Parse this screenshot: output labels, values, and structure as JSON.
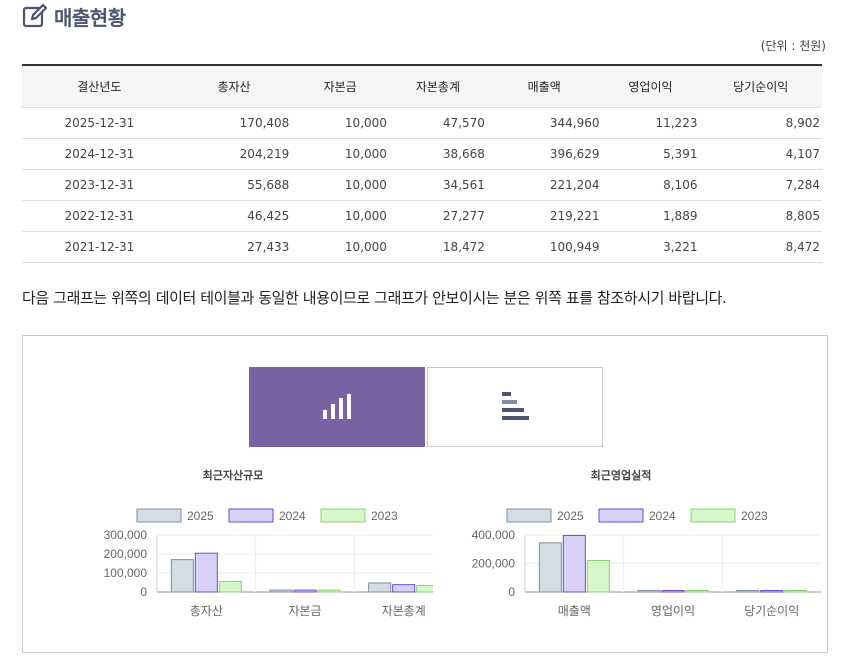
{
  "page": {
    "title": "매출현황",
    "unit_note": "(단위 : 천원)",
    "notice": "다음 그래프는 위쪽의 데이터 테이블과 동일한 내용이므로 그래프가 안보이시는 분은 위쪽 표를 참조하시기 바랍니다."
  },
  "table": {
    "headers": [
      "결산년도",
      "총자산",
      "자본금",
      "자본총계",
      "매출액",
      "영업이익",
      "당기순이익"
    ],
    "rows": [
      [
        "2025-12-31",
        "170,408",
        "10,000",
        "47,570",
        "344,960",
        "11,223",
        "8,902"
      ],
      [
        "2024-12-31",
        "204,219",
        "10,000",
        "38,668",
        "396,629",
        "5,391",
        "4,107"
      ],
      [
        "2023-12-31",
        "55,688",
        "10,000",
        "34,561",
        "221,204",
        "8,106",
        "7,284"
      ],
      [
        "2022-12-31",
        "46,425",
        "10,000",
        "27,277",
        "219,221",
        "1,889",
        "8,805"
      ],
      [
        "2021-12-31",
        "27,433",
        "10,000",
        "18,472",
        "100,949",
        "3,221",
        "8,472"
      ]
    ]
  },
  "toggles": {
    "vertical_icon": "vertical-bar-chart-icon",
    "horizontal_icon": "horizontal-bar-chart-icon",
    "active": "vertical"
  },
  "colors": {
    "accent": "#7b62a3",
    "series": [
      {
        "fill": "#d4dde6",
        "stroke": "#7d8ea1"
      },
      {
        "fill": "#d9d0f5",
        "stroke": "#6a4fd0"
      },
      {
        "fill": "#d6f5c9",
        "stroke": "#8ad16e"
      }
    ]
  },
  "chart_data": [
    {
      "type": "bar",
      "title": "최근자산규모",
      "categories": [
        "총자산",
        "자본금",
        "자본총계"
      ],
      "series": [
        {
          "name": "2025",
          "values": [
            170408,
            10000,
            47570
          ]
        },
        {
          "name": "2024",
          "values": [
            204219,
            10000,
            38668
          ]
        },
        {
          "name": "2023",
          "values": [
            55688,
            10000,
            34561
          ]
        }
      ],
      "yticks": [
        "300,000",
        "200,000",
        "100,000",
        "0"
      ],
      "ylim": [
        0,
        300000
      ],
      "legend": "top"
    },
    {
      "type": "bar",
      "title": "최근영업실적",
      "categories": [
        "매출액",
        "영업이익",
        "당기순이익"
      ],
      "series": [
        {
          "name": "2025",
          "values": [
            344960,
            11223,
            8902
          ]
        },
        {
          "name": "2024",
          "values": [
            396629,
            5391,
            4107
          ]
        },
        {
          "name": "2023",
          "values": [
            221204,
            8106,
            7284
          ]
        }
      ],
      "yticks": [
        "400,000",
        "200,000",
        "0"
      ],
      "ylim": [
        0,
        400000
      ],
      "legend": "top"
    }
  ]
}
